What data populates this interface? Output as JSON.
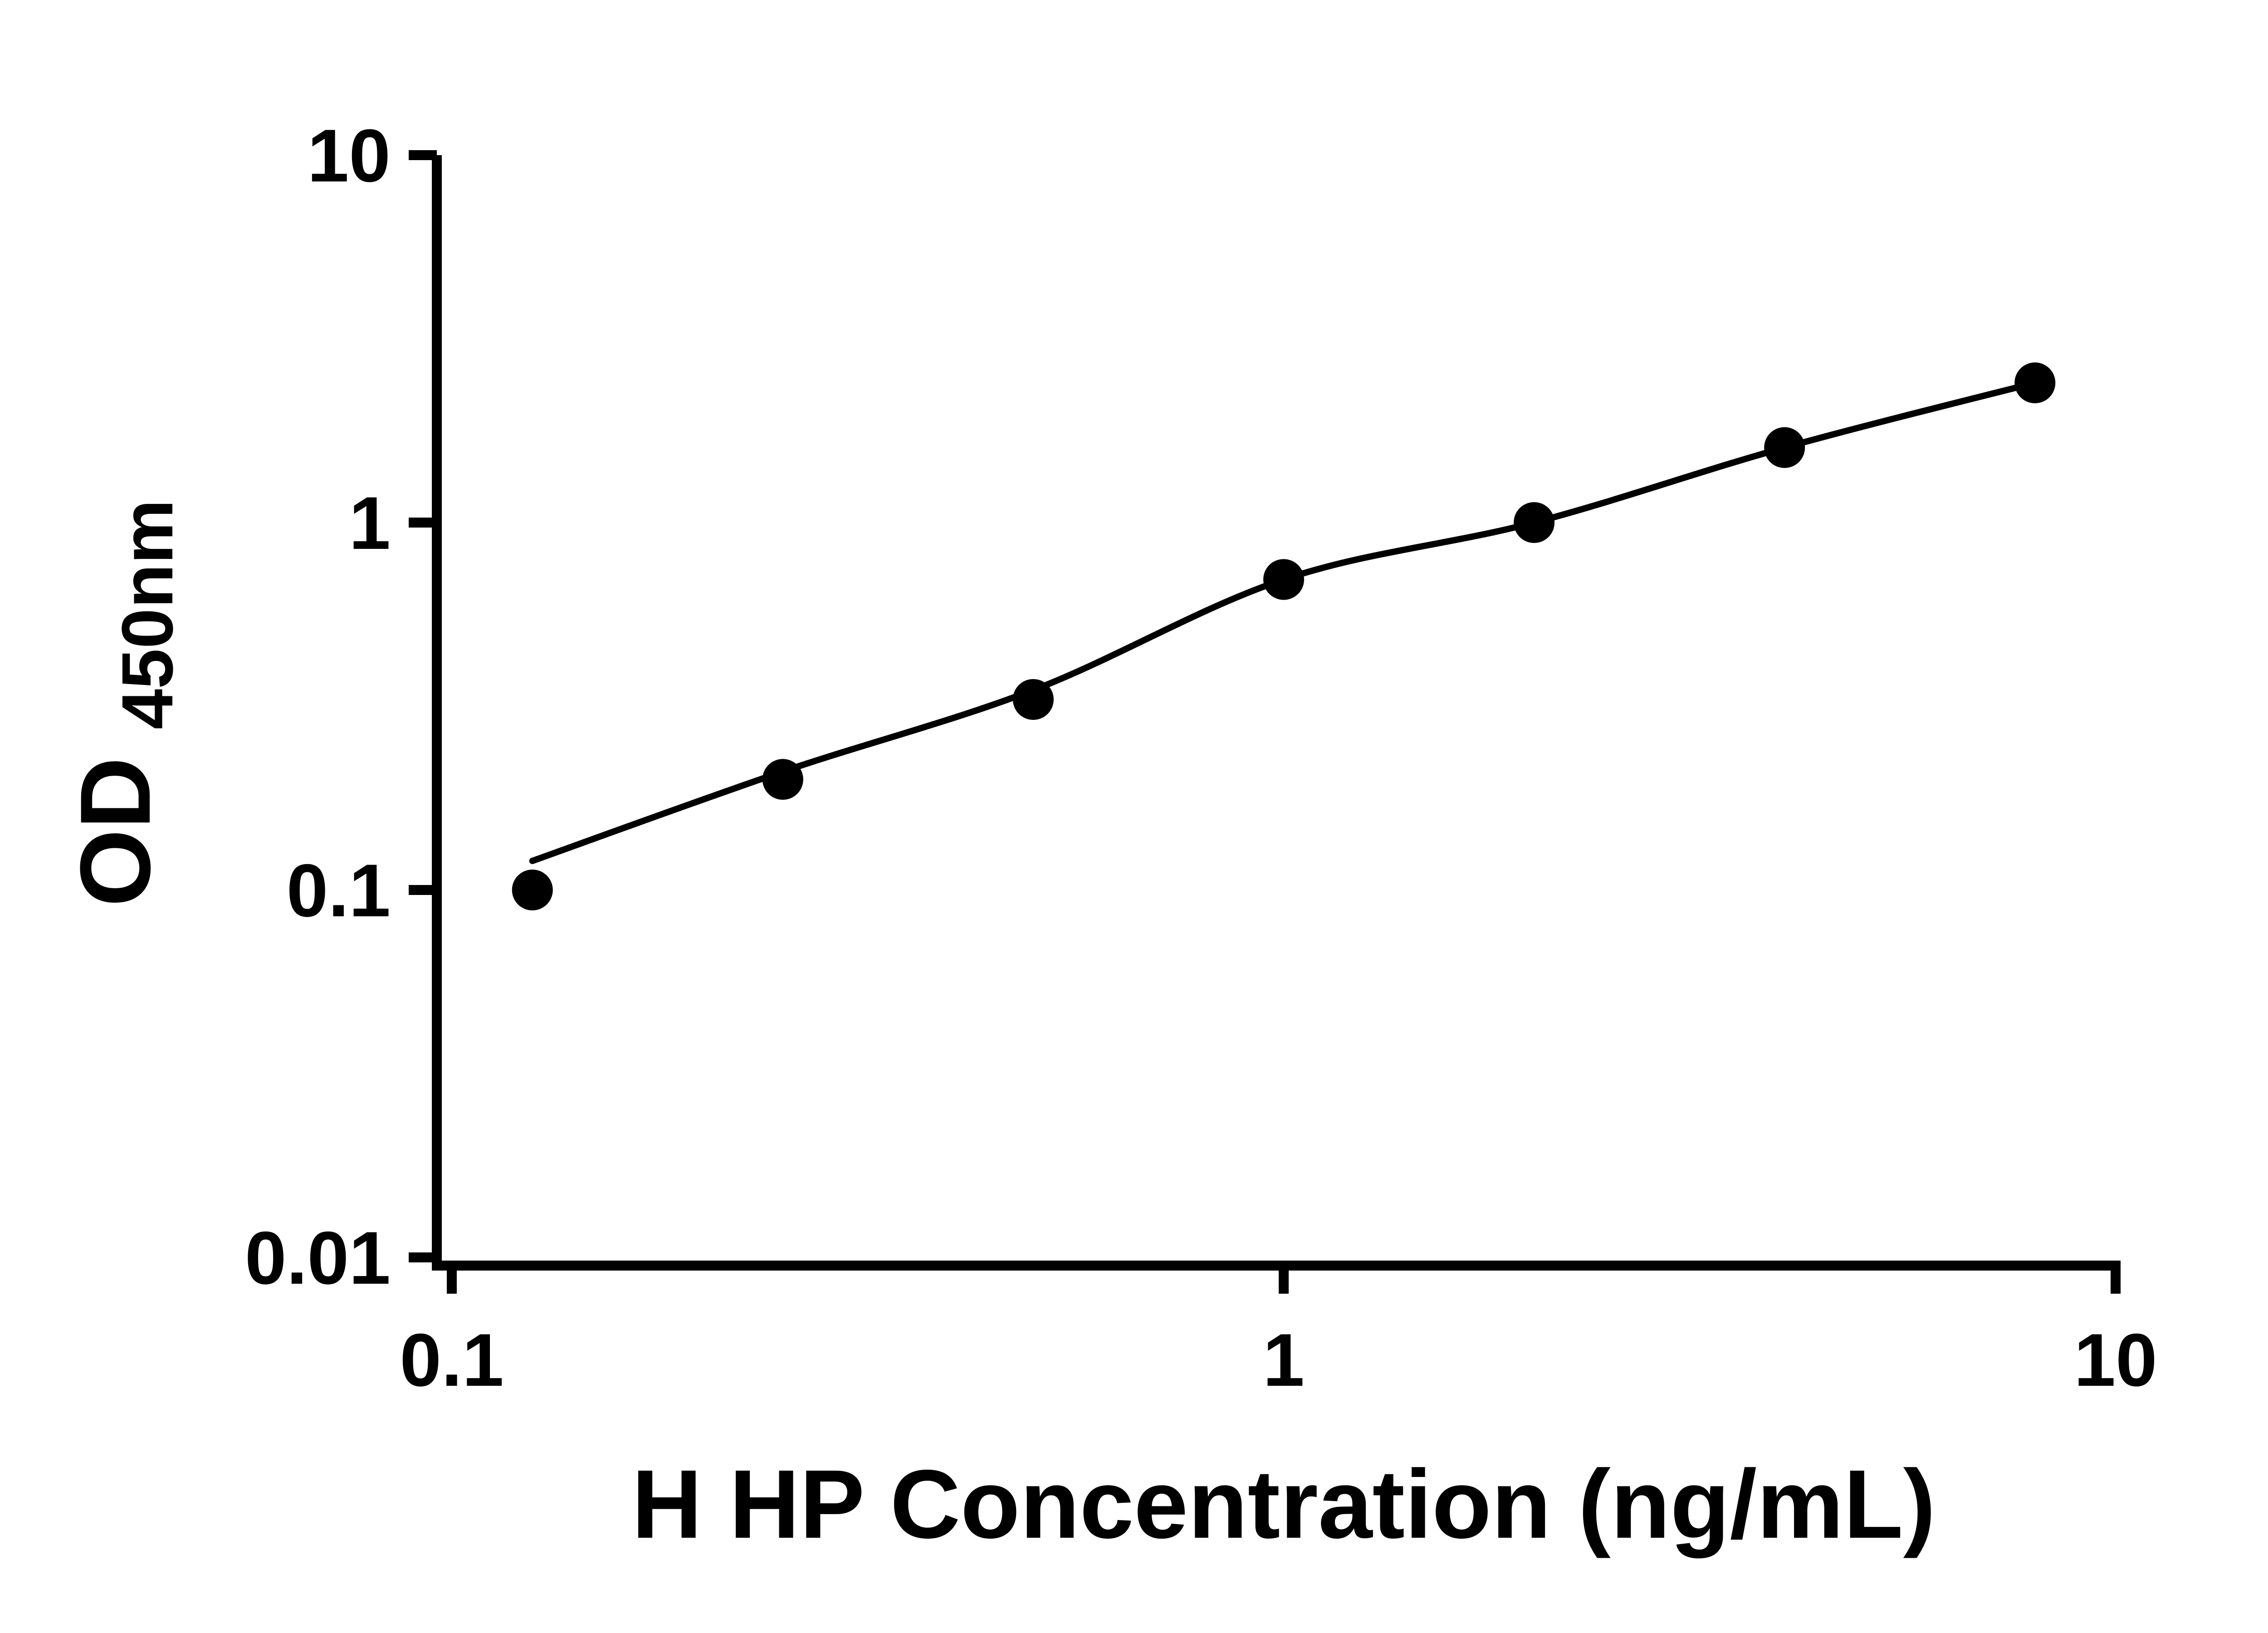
{
  "page": {
    "background": "#ffffff"
  },
  "chart_data": {
    "type": "scatter",
    "subtype": "elisa-standard-curve-with-fit-line",
    "title": "",
    "xlabel": "H HP Concentration (ng/mL)",
    "ylabel": "OD450nm",
    "ylabel_main": "OD",
    "ylabel_sub": "450nm",
    "x_scale": "log10",
    "y_scale": "log10",
    "xlim": [
      0.1,
      10
    ],
    "ylim": [
      0.01,
      10
    ],
    "x_ticks": [
      0.1,
      1,
      10
    ],
    "x_tick_labels": [
      "0.1",
      "1",
      "10"
    ],
    "y_ticks": [
      0.01,
      0.1,
      1,
      10
    ],
    "y_tick_labels": [
      "0.01",
      "0.1",
      "1",
      "10"
    ],
    "grid": false,
    "legend": false,
    "series": [
      {
        "name": "standard curve data points",
        "marker": "filled-circle",
        "color": "#000000",
        "x": [
          0.125,
          0.25,
          0.5,
          1,
          2,
          4,
          8
        ],
        "y": [
          0.1,
          0.2,
          0.33,
          0.7,
          1.0,
          1.6,
          2.4
        ]
      }
    ],
    "fit_line": {
      "name": "fitted curve",
      "color": "#000000",
      "x": [
        0.125,
        0.25,
        0.5,
        1,
        2,
        4,
        8
      ],
      "y": [
        0.12,
        0.21,
        0.35,
        0.7,
        1.0,
        1.6,
        2.4
      ]
    },
    "axis_color": "#000000",
    "text_color": "#000000",
    "marker_color": "#000000"
  }
}
